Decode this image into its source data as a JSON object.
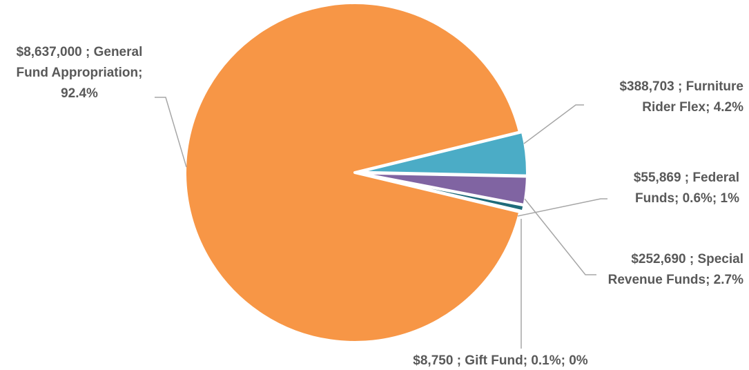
{
  "chart_data": {
    "type": "pie",
    "slices": [
      {
        "amount": "$388,703",
        "name": "Furniture Rider Flex",
        "value": 388703,
        "percent": "4.2%",
        "color": "#4bacc6",
        "label_lines": [
          "$388,703 ; Furniture",
          "Rider Flex; 4.2%"
        ]
      },
      {
        "amount": "$252,690",
        "name": "Special Revenue Funds",
        "value": 252690,
        "percent": "2.7%",
        "color": "#8064a2",
        "label_lines": [
          "$252,690 ; Special",
          "Revenue Funds; 2.7%"
        ]
      },
      {
        "amount": "$55,869",
        "name": "Federal Funds",
        "value": 55869,
        "percent": "0.6%; 1%",
        "color": "#1f6b7a",
        "label_lines": [
          "$55,869 ; Federal",
          "Funds; 0.6%; 1%"
        ]
      },
      {
        "amount": "$8,750",
        "name": "Gift Fund",
        "value": 8750,
        "percent": "0.1%; 0%",
        "color": "#2c4d75",
        "label_lines": [
          "$8,750 ; Gift Fund; 0.1%; 0%"
        ]
      },
      {
        "amount": "$8,637,000",
        "name": "General Fund Appropriation",
        "value": 8637000,
        "percent": "92.4%",
        "color": "#f79646",
        "label_lines": [
          "$8,637,000 ; General",
          "Fund Appropriation;",
          "92.4%"
        ]
      }
    ]
  }
}
